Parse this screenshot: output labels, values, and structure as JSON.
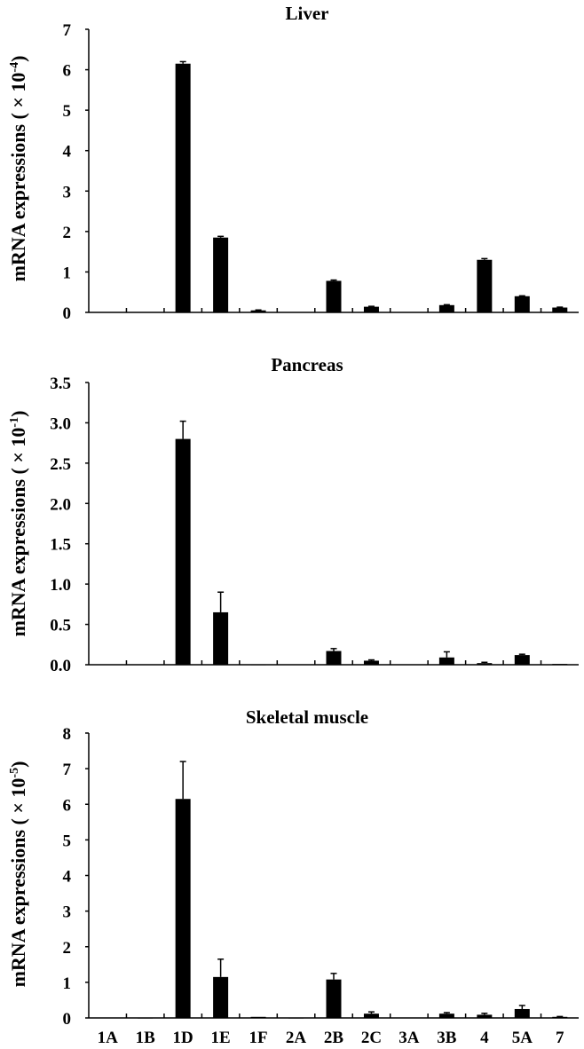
{
  "chart_data": [
    {
      "type": "bar",
      "title": "Liver",
      "ylabel": {
        "prefix": "mRNA expressions ( × 10",
        "exponent": "-4",
        "suffix": ")"
      },
      "ylim": [
        0,
        7
      ],
      "yticks": [
        "0",
        "1",
        "2",
        "3",
        "4",
        "5",
        "6",
        "7"
      ],
      "categories": [
        "1A",
        "1B",
        "1D",
        "1E",
        "1F",
        "2A",
        "2B",
        "2C",
        "3A",
        "3B",
        "4",
        "5A",
        "7"
      ],
      "values": [
        0,
        0,
        6.15,
        1.85,
        0.05,
        0,
        0.78,
        0.14,
        0,
        0.18,
        1.3,
        0.4,
        0.12
      ],
      "errors": [
        0,
        0,
        0.05,
        0.03,
        0.01,
        0,
        0.02,
        0.01,
        0,
        0.01,
        0.03,
        0.01,
        0.01
      ],
      "bar_color": "#000000"
    },
    {
      "type": "bar",
      "title": "Pancreas",
      "ylabel": {
        "prefix": "mRNA expressions ( × 10",
        "exponent": "-1",
        "suffix": ")"
      },
      "ylim": [
        0,
        3.5
      ],
      "yticks": [
        "0.0",
        "0.5",
        "1.0",
        "1.5",
        "2.0",
        "2.5",
        "3.0",
        "3.5"
      ],
      "categories": [
        "1A",
        "1B",
        "1D",
        "1E",
        "1F",
        "2A",
        "2B",
        "2C",
        "3A",
        "3B",
        "4",
        "5A",
        "7"
      ],
      "values": [
        0,
        0,
        2.8,
        0.65,
        0.005,
        0,
        0.17,
        0.05,
        0,
        0.09,
        0.02,
        0.12,
        0.01
      ],
      "errors": [
        0,
        0,
        0.22,
        0.25,
        0,
        0,
        0.03,
        0.01,
        0,
        0.07,
        0.01,
        0.01,
        0
      ],
      "bar_color": "#000000"
    },
    {
      "type": "bar",
      "title": "Skeletal muscle",
      "ylabel": {
        "prefix": "mRNA expressions ( × 10",
        "exponent": "-5",
        "suffix": ")"
      },
      "ylim": [
        0,
        8
      ],
      "yticks": [
        "0",
        "1",
        "2",
        "3",
        "4",
        "5",
        "6",
        "7",
        "8"
      ],
      "categories": [
        "1A",
        "1B",
        "1D",
        "1E",
        "1F",
        "2A",
        "2B",
        "2C",
        "3A",
        "3B",
        "4",
        "5A",
        "7"
      ],
      "values": [
        0,
        0.01,
        6.15,
        1.15,
        0.03,
        0.01,
        1.08,
        0.12,
        0,
        0.12,
        0.09,
        0.25,
        0.03
      ],
      "errors": [
        0,
        0,
        1.05,
        0.5,
        0,
        0,
        0.17,
        0.05,
        0,
        0.03,
        0.04,
        0.1,
        0.01
      ],
      "bar_color": "#000000",
      "show_category_labels": true
    }
  ]
}
